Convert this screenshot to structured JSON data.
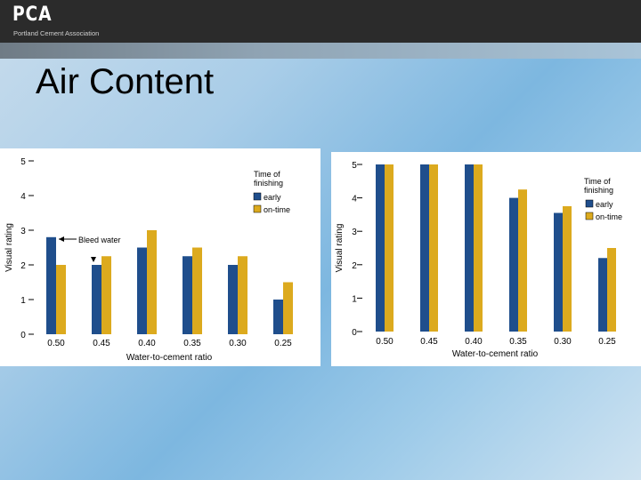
{
  "header": {
    "logo_text": "PCA",
    "logo_subtitle": "Portland Cement Association"
  },
  "slide": {
    "title": "Air Content"
  },
  "colors": {
    "early": "#1f4e8c",
    "ontime": "#dcaa1e"
  },
  "chart_data": [
    {
      "type": "bar",
      "title": "",
      "xlabel": "Water-to-cement ratio",
      "ylabel": "Visual rating",
      "ylim": [
        0,
        5
      ],
      "yticks": [
        "0",
        "1",
        "2",
        "3",
        "4",
        "5"
      ],
      "categories": [
        "0.50",
        "0.45",
        "0.40",
        "0.35",
        "0.30",
        "0.25"
      ],
      "legend_title": "Time of finishing",
      "legend_position": "top-right",
      "series": [
        {
          "name": "early",
          "values": [
            2.8,
            2.0,
            2.5,
            2.25,
            2.0,
            1.0
          ]
        },
        {
          "name": "on-time",
          "values": [
            2.0,
            2.25,
            3.0,
            2.5,
            2.25,
            1.5
          ]
        }
      ],
      "annotations": [
        "Bleed water"
      ]
    },
    {
      "type": "bar",
      "title": "",
      "xlabel": "Water-to-cement ratio",
      "ylabel": "Visual rating",
      "ylim": [
        0,
        5
      ],
      "yticks": [
        "0",
        "1",
        "2",
        "3",
        "4",
        "5"
      ],
      "categories": [
        "0.50",
        "0.45",
        "0.40",
        "0.35",
        "0.30",
        "0.25"
      ],
      "legend_title": "Time of finishing",
      "legend_position": "top-right",
      "series": [
        {
          "name": "early",
          "values": [
            5,
            5,
            5,
            4.0,
            3.55,
            2.2
          ]
        },
        {
          "name": "on-time",
          "values": [
            5,
            5,
            5,
            4.25,
            3.75,
            2.5
          ]
        }
      ],
      "annotations": []
    }
  ]
}
